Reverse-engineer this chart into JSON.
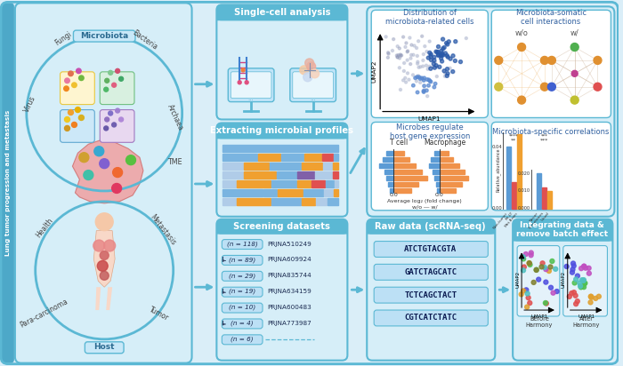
{
  "bg_color": "#daeef8",
  "panel_bg": "#ffffff",
  "light_blue_bg": "#d6eef8",
  "border_color": "#5bb8d4",
  "title_bg": "#5bb8d4",
  "arrow_color": "#5bb8d4",
  "left_sidebar_color": "#4da8c8",
  "left_panel_title": "Lung tumor progression and metastasis",
  "microbiota_label": "Microbiota",
  "host_label": "Host",
  "fungi_label": "Fungi",
  "bacteria_label": "Bacteria",
  "virus_label": "Virus",
  "archaea_label": "Archaea",
  "tme_label": "TME",
  "health_label": "Health",
  "metastasis_label": "Metastasis",
  "para_carcinoma_label": "Para-carcinoma",
  "tumor_label": "Tumor",
  "single_cell_title": "Single-cell analysis",
  "microbial_title": "Extracting microbial profiles",
  "distribution_title": "Distribution of\nmicrobiota-related cells",
  "umap1_label": "UMAP1",
  "umap2_label": "UMAP2",
  "interactions_title": "Microbiota-somatic\ncell interactions",
  "wo_label": "w/o",
  "w_label": "w/",
  "gene_expr_title": "Microbes regulate\nhost gene expression",
  "tcell_label": "T cell",
  "macrophage_label": "Macrophage",
  "avg_log2_label": "Average log₂ (fold change)",
  "wo_w_label": "w/o ― w/",
  "correlations_title": "Microbiota-specific correlations",
  "corr_left_cats": [
    "Non-tumor",
    "Pri.LT",
    "Met.Brain"
  ],
  "corr_right_cats": [
    "Never",
    "Sometimes",
    "Usual"
  ],
  "screening_title": "Screening datasets",
  "datasets": [
    {
      "n": "(n = 118)",
      "id": "PRJNA510249",
      "arrow": false
    },
    {
      "n": "(n = 89)",
      "id": "PRJNA609924",
      "arrow": true
    },
    {
      "n": "(n = 29)",
      "id": "PRJNA835744",
      "arrow": false
    },
    {
      "n": "(n = 19)",
      "id": "PRJNA634159",
      "arrow": true
    },
    {
      "n": "(n = 10)",
      "id": "PRJNA600483",
      "arrow": false
    },
    {
      "n": "(n = 4)",
      "id": "PRJNA773987",
      "arrow": true
    },
    {
      "n": "(n = 6)",
      "id": "",
      "arrow": false
    }
  ],
  "rawdata_title": "Raw data (scRNA-seq)",
  "sequences": [
    "ATCTGTACGTA",
    "GATCTAGCATC",
    "TCTCAGCTACT",
    "CGTCATCTATC"
  ],
  "integrating_title": "Integrating data &\nremove batch effect",
  "before_label": "Before\nHarmony",
  "after_label": "After\nHarmony"
}
